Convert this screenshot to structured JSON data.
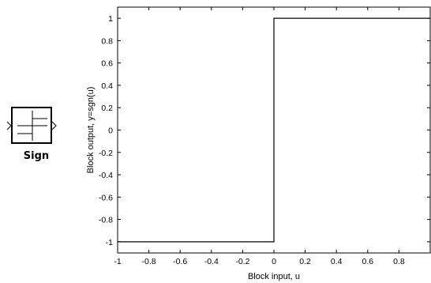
{
  "block": {
    "label": "Sign",
    "icon": "sign-function-block-icon"
  },
  "chart_data": {
    "type": "line",
    "title": "",
    "xlabel": "Block input, u",
    "ylabel": "Block output, y=sgn(u)",
    "xlim": [
      -1,
      1
    ],
    "ylim": [
      -1.1,
      1.1
    ],
    "x_tick_labels": [
      "-1",
      "-0.8",
      "-0.6",
      "-0.4",
      "-0.2",
      "0",
      "0.2",
      "0.4",
      "0.6",
      "0.8"
    ],
    "y_tick_labels": [
      "1",
      "0.8",
      "0.6",
      "0.4",
      "0.2",
      "0",
      "-0.2",
      "-0.4",
      "-0.6",
      "-0.8",
      "-1"
    ],
    "x_ticks": [
      -1,
      -0.8,
      -0.6,
      -0.4,
      -0.2,
      0,
      0.2,
      0.4,
      0.6,
      0.8
    ],
    "y_ticks": [
      1,
      0.8,
      0.6,
      0.4,
      0.2,
      0,
      -0.2,
      -0.4,
      -0.6,
      -0.8,
      -1
    ],
    "grid": false,
    "series": [
      {
        "x": [
          -1,
          0,
          0,
          1
        ],
        "y": [
          -1,
          -1,
          1,
          1
        ]
      }
    ],
    "line_color": "#000000"
  }
}
